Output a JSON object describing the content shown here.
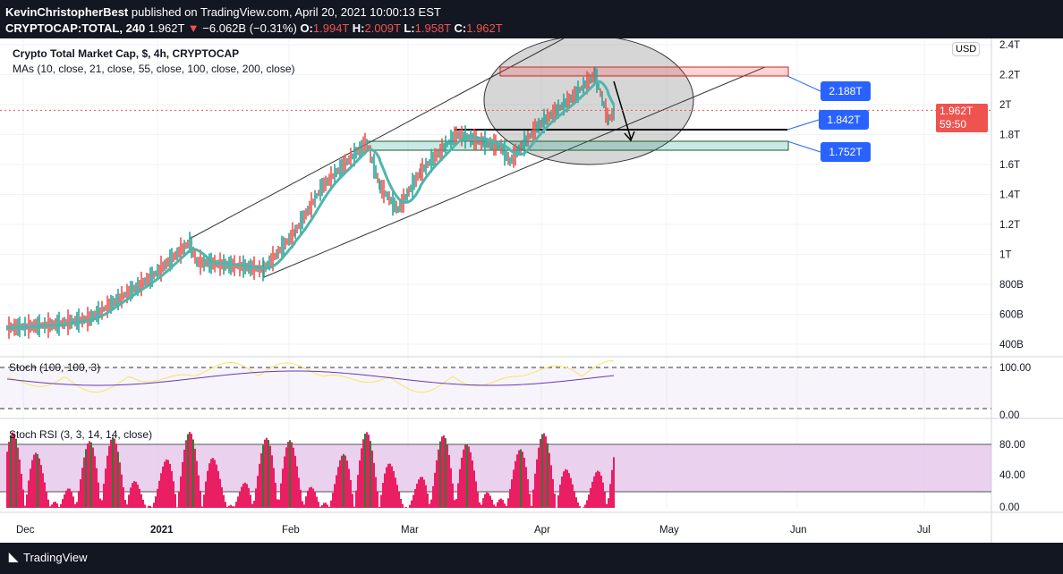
{
  "header": {
    "author": "KevinChristopherBest",
    "published": "published on TradingView.com, April 20, 2021 10:00:13 EST",
    "symbol": "CRYPTOCAP:TOTAL, 240",
    "last": "1.962T",
    "change": "−6.062B (−0.31%)",
    "open": "1.994T",
    "high": "2.009T",
    "low": "1.958T",
    "close": "1.962T"
  },
  "legend": {
    "title": "Crypto Total Market Cap, $, 4h, CRYPTOCAP",
    "mas": "MAs (10, close, 21, close, 55, close, 100, close, 200, close)",
    "stoch": "Stoch (100, 100, 3)",
    "stoch_rsi": "Stoch RSI (3, 3, 14, 14, close)"
  },
  "price_axis": {
    "currency": "USD",
    "ticks": [
      "2.4T",
      "2.2T",
      "2T",
      "1.8T",
      "1.6T",
      "1.4T",
      "1.2T",
      "1T",
      "800B",
      "600B",
      "400B"
    ],
    "current_price": "1.962T",
    "countdown": "59:50"
  },
  "stoch_axis": [
    "100.00",
    "0.00"
  ],
  "stoch_rsi_axis": [
    "80.00",
    "40.00",
    "0.00"
  ],
  "time_axis": [
    "Dec",
    "2021",
    "Feb",
    "Mar",
    "Apr",
    "May",
    "Jun",
    "Jul"
  ],
  "levels": [
    "2.188T",
    "1.842T",
    "1.752T"
  ],
  "colors": {
    "up": "#26a69a",
    "down": "#ef5350",
    "ma": "#4db6ac",
    "label": "#2962ff",
    "stoch_rsi": "#e91e63"
  },
  "footer": {
    "brand": "TradingView"
  },
  "chart_data": {
    "type": "line",
    "series": [
      {
        "values": [
          0.51,
          0.53,
          0.57,
          0.85,
          1.08,
          0.95,
          0.92,
          0.9,
          1.15,
          1.45,
          1.75,
          1.45,
          1.3,
          1.55,
          1.8,
          1.72,
          1.62,
          1.85,
          2.05,
          2.2,
          1.9,
          1.96
        ]
      }
    ]
  }
}
